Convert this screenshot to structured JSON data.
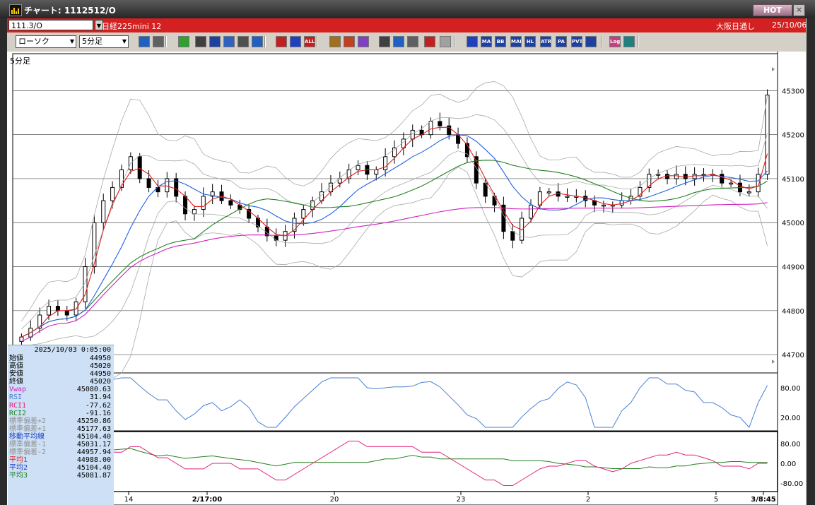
{
  "window": {
    "title": "チャート: 1112512/O",
    "hot_label": "HOT",
    "close_glyph": "×"
  },
  "header": {
    "symbol_code": "111.3/O",
    "contract_name": "日経225mini 12",
    "market": "大阪日通し",
    "date": "25/10/06"
  },
  "toolbar": {
    "chart_type": "ローソク",
    "interval": "5分足",
    "buttons": [
      {
        "name": "zoom",
        "icon": "magnifier-icon",
        "color": "#2060c0"
      },
      {
        "name": "cursor",
        "icon": "crosshair-icon",
        "color": "#606060"
      },
      {
        "name": "draw-line",
        "icon": "pencil-icon",
        "color": "#30a030"
      },
      {
        "name": "trend",
        "icon": "trendline-icon",
        "color": "#404040"
      },
      {
        "name": "pointer",
        "icon": "pointer-icon",
        "color": "#2040a0"
      },
      {
        "name": "arrow",
        "icon": "arrow-icon",
        "color": "#3060c0"
      },
      {
        "name": "copy",
        "icon": "copy-icon",
        "color": "#505050"
      },
      {
        "name": "delete",
        "icon": "trash-icon",
        "color": "#2060c0"
      },
      {
        "name": "candle-style-1",
        "icon": "candle-icon",
        "color": "#c02020"
      },
      {
        "name": "candle-style-2",
        "icon": "candle-icon",
        "color": "#2040c0"
      },
      {
        "name": "all",
        "icon": "all-icon",
        "label": "ALL",
        "color": "#c02020"
      },
      {
        "name": "palette",
        "icon": "palette-icon",
        "color": "#a07020"
      },
      {
        "name": "brush",
        "icon": "brush-icon",
        "color": "#c04020"
      },
      {
        "name": "color",
        "icon": "rainbow-icon",
        "color": "#8040c0"
      },
      {
        "name": "order",
        "icon": "order-icon",
        "color": "#404040"
      },
      {
        "name": "search",
        "icon": "search-icon",
        "color": "#2060c0"
      },
      {
        "name": "chart-table",
        "icon": "table-icon",
        "color": "#606060"
      },
      {
        "name": "signal",
        "icon": "signal-icon",
        "color": "#c02020"
      },
      {
        "name": "disabled",
        "icon": "disabled-icon",
        "color": "#a0a0a0"
      },
      {
        "name": "ichimoku",
        "icon": "ichimoku-icon",
        "color": "#2040c0"
      },
      {
        "name": "ma",
        "icon": "ma-icon",
        "label": "MA",
        "color": "#2040a0"
      },
      {
        "name": "bb",
        "icon": "bb-icon",
        "label": "BB",
        "color": "#2040a0"
      },
      {
        "name": "mae",
        "icon": "mae-icon",
        "label": "MAE",
        "color": "#2040a0"
      },
      {
        "name": "hl",
        "icon": "hl-icon",
        "label": "HL",
        "color": "#2040a0"
      },
      {
        "name": "atr",
        "icon": "atr-icon",
        "label": "ATR",
        "color": "#2040a0"
      },
      {
        "name": "para",
        "icon": "para-icon",
        "label": "PA RA",
        "color": "#2040a0"
      },
      {
        "name": "pvt",
        "icon": "pvt-icon",
        "label": "PVT",
        "color": "#2040a0"
      },
      {
        "name": "box",
        "icon": "box-icon",
        "color": "#2040a0"
      },
      {
        "name": "log",
        "icon": "log-icon",
        "label": "Log",
        "color": "#c04080"
      },
      {
        "name": "window",
        "icon": "window-icon",
        "color": "#208080"
      }
    ]
  },
  "chart": {
    "timeframe_label": "5分足",
    "price_ticks": [
      "45300",
      "45200",
      "45100",
      "45000",
      "44900",
      "44800",
      "44700"
    ],
    "rsi_ticks": [
      "80.00",
      "20.00"
    ],
    "rci_ticks": [
      "80.00",
      "0.00",
      "-80.00"
    ],
    "date_ticks": [
      "14",
      "2/17:00",
      "20",
      "23",
      "2",
      "5",
      "3/8:45"
    ],
    "colors": {
      "bb": "#a8a8a8",
      "ma1": "#e02020",
      "ma2": "#2060e0",
      "ma3": "#208020",
      "vwap": "#d020c0",
      "rsi": "#4a80d0",
      "rci1": "#e0207a",
      "rci2": "#208020"
    }
  },
  "chart_data": {
    "type": "candlestick",
    "ylim": [
      44660,
      45360
    ],
    "y_ticks": [
      45300,
      45200,
      45100,
      45000,
      44900,
      44800,
      44700
    ],
    "close": [
      44740,
      44760,
      44790,
      44810,
      44800,
      44790,
      44820,
      44900,
      45000,
      45050,
      45080,
      45120,
      45150,
      45100,
      45080,
      45070,
      45100,
      45060,
      45020,
      45030,
      45060,
      45070,
      45050,
      45040,
      45030,
      45010,
      44990,
      44970,
      44960,
      44980,
      45010,
      45030,
      45050,
      45070,
      45090,
      45100,
      45120,
      45130,
      45110,
      45120,
      45150,
      45170,
      45190,
      45210,
      45200,
      45230,
      45220,
      45200,
      45180,
      45150,
      45090,
      45060,
      45040,
      44980,
      44960,
      45010,
      45040,
      45070,
      45070,
      45060,
      45060,
      45060,
      45050,
      45040,
      45040,
      45040,
      45050,
      45060,
      45080,
      45110,
      45110,
      45100,
      45110,
      45100,
      45110,
      45110,
      45110,
      45090,
      45090,
      45070,
      45070,
      45110,
      45290
    ],
    "info_panel": {
      "datetime": "2025/10/03 0:05:00",
      "rows": [
        {
          "k": "始値",
          "v": "44950",
          "color": "#000000"
        },
        {
          "k": "高値",
          "v": "45020",
          "color": "#000000"
        },
        {
          "k": "安値",
          "v": "44950",
          "color": "#000000"
        },
        {
          "k": "終値",
          "v": "45020",
          "color": "#000000"
        },
        {
          "k": "Vwap",
          "v": "45080.63",
          "color": "#d020c0"
        },
        {
          "k": "RSI",
          "v": "31.94",
          "color": "#4a80d0"
        },
        {
          "k": "RCI1",
          "v": "-77.62",
          "color": "#e0207a"
        },
        {
          "k": "RCI2",
          "v": "-91.16",
          "color": "#208020"
        },
        {
          "k": "標準偏差+2",
          "v": "45250.86",
          "color": "#909090"
        },
        {
          "k": "標準偏差+1",
          "v": "45177.63",
          "color": "#909090"
        },
        {
          "k": "移動平均線",
          "v": "45104.40",
          "color": "#2040c0"
        },
        {
          "k": "標準偏差-1",
          "v": "45031.17",
          "color": "#909090"
        },
        {
          "k": "標準偏差-2",
          "v": "44957.94",
          "color": "#909090"
        },
        {
          "k": "平均1",
          "v": "44988.00",
          "color": "#e02020"
        },
        {
          "k": "平均2",
          "v": "45104.40",
          "color": "#2040c0"
        },
        {
          "k": "平均3",
          "v": "45081.87",
          "color": "#208020"
        }
      ]
    }
  }
}
